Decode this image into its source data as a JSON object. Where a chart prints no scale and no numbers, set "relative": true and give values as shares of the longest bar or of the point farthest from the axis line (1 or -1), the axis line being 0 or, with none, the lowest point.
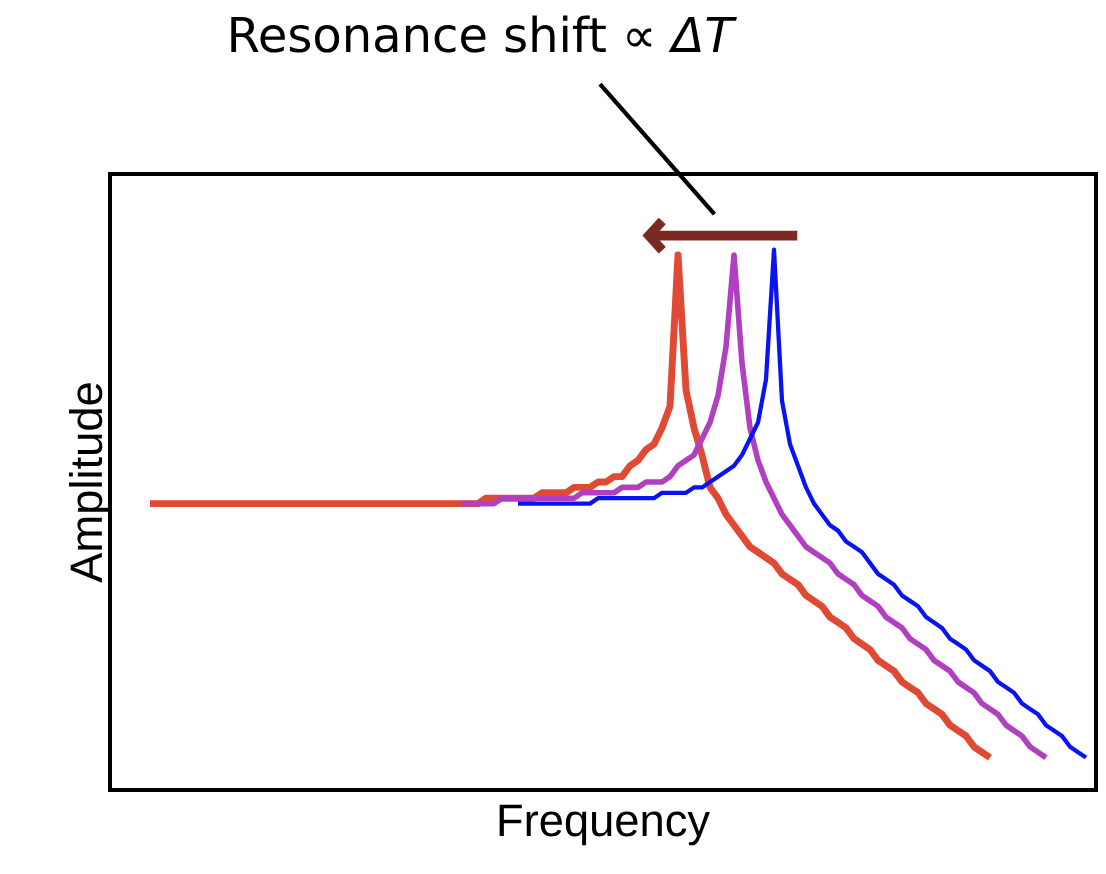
{
  "chart_data": {
    "type": "line",
    "title": "Resonance shift ∝ *ΔT*",
    "xlabel": "Frequency",
    "ylabel": "Amplitude",
    "relative": true,
    "line_style": "solid",
    "categories": [
      null,
      null,
      null,
      null,
      null,
      null,
      null,
      null,
      null,
      null,
      null,
      null,
      null,
      null,
      null,
      null,
      null,
      null,
      null,
      null,
      null,
      null,
      null,
      null,
      null,
      null,
      null,
      null,
      null,
      null,
      null,
      null,
      null,
      null,
      null,
      null,
      null,
      null,
      null,
      null,
      null,
      null,
      null,
      null,
      null,
      null,
      null,
      null,
      null,
      null,
      null,
      null,
      null,
      null,
      null,
      null,
      null,
      null,
      null,
      null,
      null,
      null,
      null,
      null,
      null,
      null,
      null,
      null,
      null,
      null,
      null,
      null,
      null,
      null,
      null,
      null,
      null,
      null,
      null,
      null,
      null,
      null,
      null,
      null,
      null,
      null,
      null,
      null,
      null,
      null,
      null,
      null,
      null,
      null,
      null,
      null,
      null,
      null,
      null,
      null,
      null,
      null,
      null,
      null,
      null,
      null,
      null,
      null,
      null,
      null,
      null,
      null,
      null,
      null,
      null,
      null,
      null,
      null
    ],
    "series": [
      {
        "color": "#e04a35",
        "values": [
          0.53,
          0.53,
          0.53,
          0.53,
          0.53,
          0.53,
          0.53,
          0.53,
          0.53,
          0.53,
          0.53,
          0.53,
          0.53,
          0.53,
          0.53,
          0.53,
          0.53,
          0.53,
          0.53,
          0.53,
          0.53,
          0.53,
          0.53,
          0.53,
          0.53,
          0.53,
          0.53,
          0.53,
          0.53,
          0.53,
          0.53,
          0.53,
          0.53,
          0.53,
          0.53,
          0.53,
          0.53,
          0.53,
          0.53,
          0.53,
          0.53,
          0.53,
          0.54,
          0.54,
          0.54,
          0.54,
          0.54,
          0.54,
          0.54,
          0.55,
          0.55,
          0.55,
          0.55,
          0.56,
          0.56,
          0.56,
          0.57,
          0.57,
          0.58,
          0.58,
          0.6,
          0.61,
          0.63,
          0.64,
          0.67,
          0.71,
          0.99,
          0.74,
          0.67,
          0.62,
          0.56,
          0.54,
          0.51,
          0.49,
          0.47,
          0.45,
          0.44,
          0.43,
          0.42,
          0.4,
          0.39,
          0.38,
          0.36,
          0.35,
          0.34,
          0.32,
          0.31,
          0.3,
          0.28,
          0.27,
          0.26,
          0.24,
          0.23,
          0.22,
          0.2,
          0.19,
          0.18,
          0.16,
          0.15,
          0.14,
          0.12,
          0.11,
          0.1,
          0.08,
          0.07,
          0.06,
          null,
          null,
          null,
          null,
          null,
          null,
          null,
          null,
          null,
          null,
          null,
          null
        ]
      },
      {
        "color": "#b040c0",
        "values": [
          null,
          null,
          null,
          null,
          null,
          null,
          null,
          null,
          null,
          null,
          null,
          null,
          null,
          null,
          null,
          null,
          null,
          null,
          null,
          null,
          null,
          null,
          null,
          null,
          null,
          null,
          null,
          null,
          null,
          null,
          null,
          null,
          null,
          null,
          null,
          null,
          null,
          null,
          null,
          0.53,
          0.53,
          0.53,
          0.53,
          0.53,
          0.54,
          0.54,
          0.54,
          0.54,
          0.54,
          0.54,
          0.54,
          0.54,
          0.54,
          0.54,
          0.55,
          0.55,
          0.55,
          0.55,
          0.55,
          0.56,
          0.56,
          0.56,
          0.57,
          0.57,
          0.57,
          0.58,
          0.6,
          0.61,
          0.62,
          0.65,
          0.68,
          0.73,
          0.82,
          0.99,
          0.79,
          0.67,
          0.61,
          0.57,
          0.54,
          0.51,
          0.49,
          0.47,
          0.45,
          0.44,
          0.43,
          0.42,
          0.4,
          0.39,
          0.38,
          0.36,
          0.35,
          0.34,
          0.32,
          0.31,
          0.3,
          0.28,
          0.27,
          0.26,
          0.24,
          0.23,
          0.22,
          0.2,
          0.19,
          0.18,
          0.16,
          0.15,
          0.14,
          0.12,
          0.11,
          0.1,
          0.08,
          0.07,
          0.06,
          null,
          null,
          null,
          null,
          null
        ]
      },
      {
        "color": "#0a14f0",
        "values": [
          null,
          null,
          null,
          null,
          null,
          null,
          null,
          null,
          null,
          null,
          null,
          null,
          null,
          null,
          null,
          null,
          null,
          null,
          null,
          null,
          null,
          null,
          null,
          null,
          null,
          null,
          null,
          null,
          null,
          null,
          null,
          null,
          null,
          null,
          null,
          null,
          null,
          null,
          null,
          null,
          null,
          null,
          null,
          null,
          null,
          null,
          0.53,
          0.53,
          0.53,
          0.53,
          0.53,
          0.53,
          0.53,
          0.53,
          0.53,
          0.53,
          0.54,
          0.54,
          0.54,
          0.54,
          0.54,
          0.54,
          0.54,
          0.54,
          0.55,
          0.55,
          0.55,
          0.55,
          0.56,
          0.56,
          0.57,
          0.58,
          0.59,
          0.6,
          0.62,
          0.65,
          0.68,
          0.76,
          1.0,
          0.72,
          0.64,
          0.6,
          0.56,
          0.53,
          0.51,
          0.49,
          0.48,
          0.46,
          0.45,
          0.44,
          0.42,
          0.4,
          0.39,
          0.38,
          0.36,
          0.35,
          0.34,
          0.32,
          0.31,
          0.3,
          0.28,
          0.27,
          0.26,
          0.24,
          0.23,
          0.22,
          0.2,
          0.19,
          0.18,
          0.16,
          0.15,
          0.14,
          0.12,
          0.11,
          0.1,
          0.08,
          0.07,
          0.06
        ]
      }
    ]
  }
}
